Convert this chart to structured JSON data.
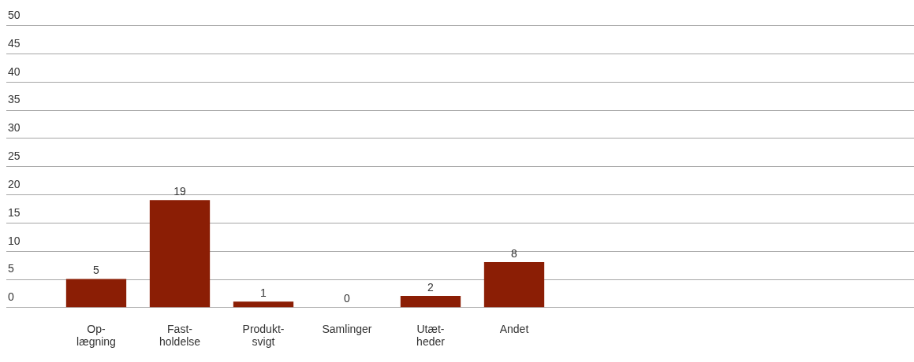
{
  "chart_data": {
    "type": "bar",
    "categories": [
      "Op- lægning",
      "Fast- holdelse",
      "Produkt- svigt",
      "Samlinger",
      "Utæt- heder",
      "Andet"
    ],
    "values": [
      5,
      19,
      1,
      0,
      2,
      8
    ],
    "color": "#8b1e05",
    "ylim": [
      0,
      50
    ],
    "yticks": [
      0,
      5,
      10,
      15,
      20,
      25,
      30,
      35,
      40,
      45,
      50
    ],
    "grid": "y",
    "data_labels": true,
    "legend": false
  }
}
